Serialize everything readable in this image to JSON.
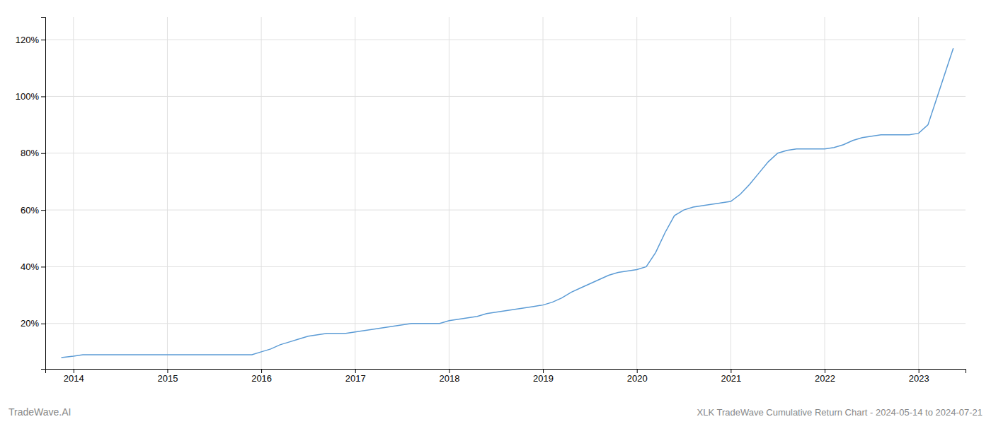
{
  "chart_data": {
    "type": "line",
    "title": "XLK TradeWave Cumulative Return Chart - 2024-05-14 to 2024-07-21",
    "annotations": [
      "TradeWave.AI"
    ],
    "color": "#5b9bd5",
    "x": [
      2013.87,
      2014.0,
      2014.1,
      2014.2,
      2014.3,
      2014.4,
      2014.5,
      2014.6,
      2014.7,
      2014.8,
      2014.9,
      2015.0,
      2015.1,
      2015.2,
      2015.3,
      2015.4,
      2015.5,
      2015.6,
      2015.7,
      2015.8,
      2015.9,
      2016.0,
      2016.1,
      2016.2,
      2016.3,
      2016.4,
      2016.5,
      2016.6,
      2016.7,
      2016.8,
      2016.9,
      2017.0,
      2017.1,
      2017.2,
      2017.3,
      2017.4,
      2017.5,
      2017.6,
      2017.7,
      2017.8,
      2017.9,
      2018.0,
      2018.1,
      2018.2,
      2018.3,
      2018.4,
      2018.5,
      2018.6,
      2018.7,
      2018.8,
      2018.9,
      2019.0,
      2019.1,
      2019.2,
      2019.3,
      2019.4,
      2019.5,
      2019.6,
      2019.7,
      2019.8,
      2019.9,
      2020.0,
      2020.1,
      2020.2,
      2020.3,
      2020.4,
      2020.5,
      2020.6,
      2020.7,
      2020.8,
      2020.9,
      2021.0,
      2021.1,
      2021.2,
      2021.3,
      2021.4,
      2021.5,
      2021.6,
      2021.7,
      2021.8,
      2021.9,
      2022.0,
      2022.1,
      2022.2,
      2022.3,
      2022.4,
      2022.5,
      2022.6,
      2022.7,
      2022.8,
      2022.9,
      2023.0,
      2023.1,
      2023.2,
      2023.3,
      2023.37
    ],
    "values": [
      0.08,
      0.085,
      0.09,
      0.09,
      0.09,
      0.09,
      0.09,
      0.09,
      0.09,
      0.09,
      0.09,
      0.09,
      0.09,
      0.09,
      0.09,
      0.09,
      0.09,
      0.09,
      0.09,
      0.09,
      0.09,
      0.1,
      0.11,
      0.125,
      0.135,
      0.145,
      0.155,
      0.16,
      0.165,
      0.165,
      0.165,
      0.17,
      0.175,
      0.18,
      0.185,
      0.19,
      0.195,
      0.2,
      0.2,
      0.2,
      0.2,
      0.21,
      0.215,
      0.22,
      0.225,
      0.235,
      0.24,
      0.245,
      0.25,
      0.255,
      0.26,
      0.265,
      0.275,
      0.29,
      0.31,
      0.325,
      0.34,
      0.355,
      0.37,
      0.38,
      0.385,
      0.39,
      0.4,
      0.45,
      0.52,
      0.58,
      0.6,
      0.61,
      0.615,
      0.62,
      0.625,
      0.63,
      0.655,
      0.69,
      0.73,
      0.77,
      0.8,
      0.81,
      0.815,
      0.815,
      0.815,
      0.815,
      0.82,
      0.83,
      0.845,
      0.855,
      0.86,
      0.865,
      0.865,
      0.865,
      0.865,
      0.87,
      0.9,
      1.0,
      1.1,
      1.17
    ],
    "xlim": [
      2013.7,
      2023.5
    ],
    "ylim": [
      0.04,
      1.28
    ],
    "xticks": [
      2014,
      2015,
      2016,
      2017,
      2018,
      2019,
      2020,
      2021,
      2022,
      2023
    ],
    "yticks": [
      {
        "value": 0.2,
        "label": "20%"
      },
      {
        "value": 0.4,
        "label": "40%"
      },
      {
        "value": 0.6,
        "label": "60%"
      },
      {
        "value": 0.8,
        "label": "80%"
      },
      {
        "value": 1.0,
        "label": "100%"
      },
      {
        "value": 1.2,
        "label": "120%"
      }
    ],
    "grid": true
  }
}
